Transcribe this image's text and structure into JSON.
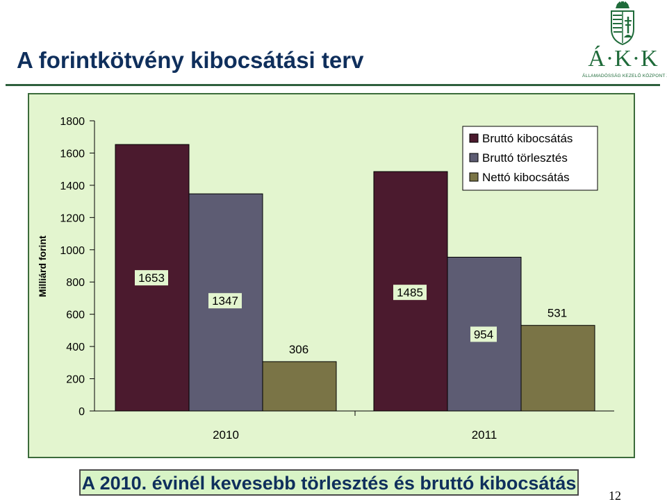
{
  "slide": {
    "title": "A forintkötvény kibocsátási terv",
    "footer": "A 2010. évinél kevesebb törlesztés és bruttó kibocsátás",
    "page_number": "12"
  },
  "logo": {
    "text": "Á·K·K",
    "subtitle": "ÁLLAMADÓSSÁG KEZELŐ KÖZPONT ZRT."
  },
  "colors": {
    "gross_issuance": "#4b1a2e",
    "gross_repayment": "#5d5c73",
    "net_issuance": "#7a7446",
    "chart_background": "#e3f5cf",
    "brand_green": "#1f6b3a",
    "title_navy": "#0f2f5c"
  },
  "chart_data": {
    "type": "bar",
    "categories": [
      "2010",
      "2011"
    ],
    "series": [
      {
        "name": "Bruttó kibocsátás",
        "values": [
          1653,
          1485
        ]
      },
      {
        "name": "Bruttó törlesztés",
        "values": [
          1347,
          954
        ]
      },
      {
        "name": "Nettó kibocsátás",
        "values": [
          306,
          531
        ]
      }
    ],
    "ylabel": "Milliárd forint",
    "ylim": [
      0,
      1800
    ],
    "yticks": [
      0,
      200,
      400,
      600,
      800,
      1000,
      1200,
      1400,
      1600,
      1800
    ],
    "legend_position": "top-right",
    "grid": false
  }
}
